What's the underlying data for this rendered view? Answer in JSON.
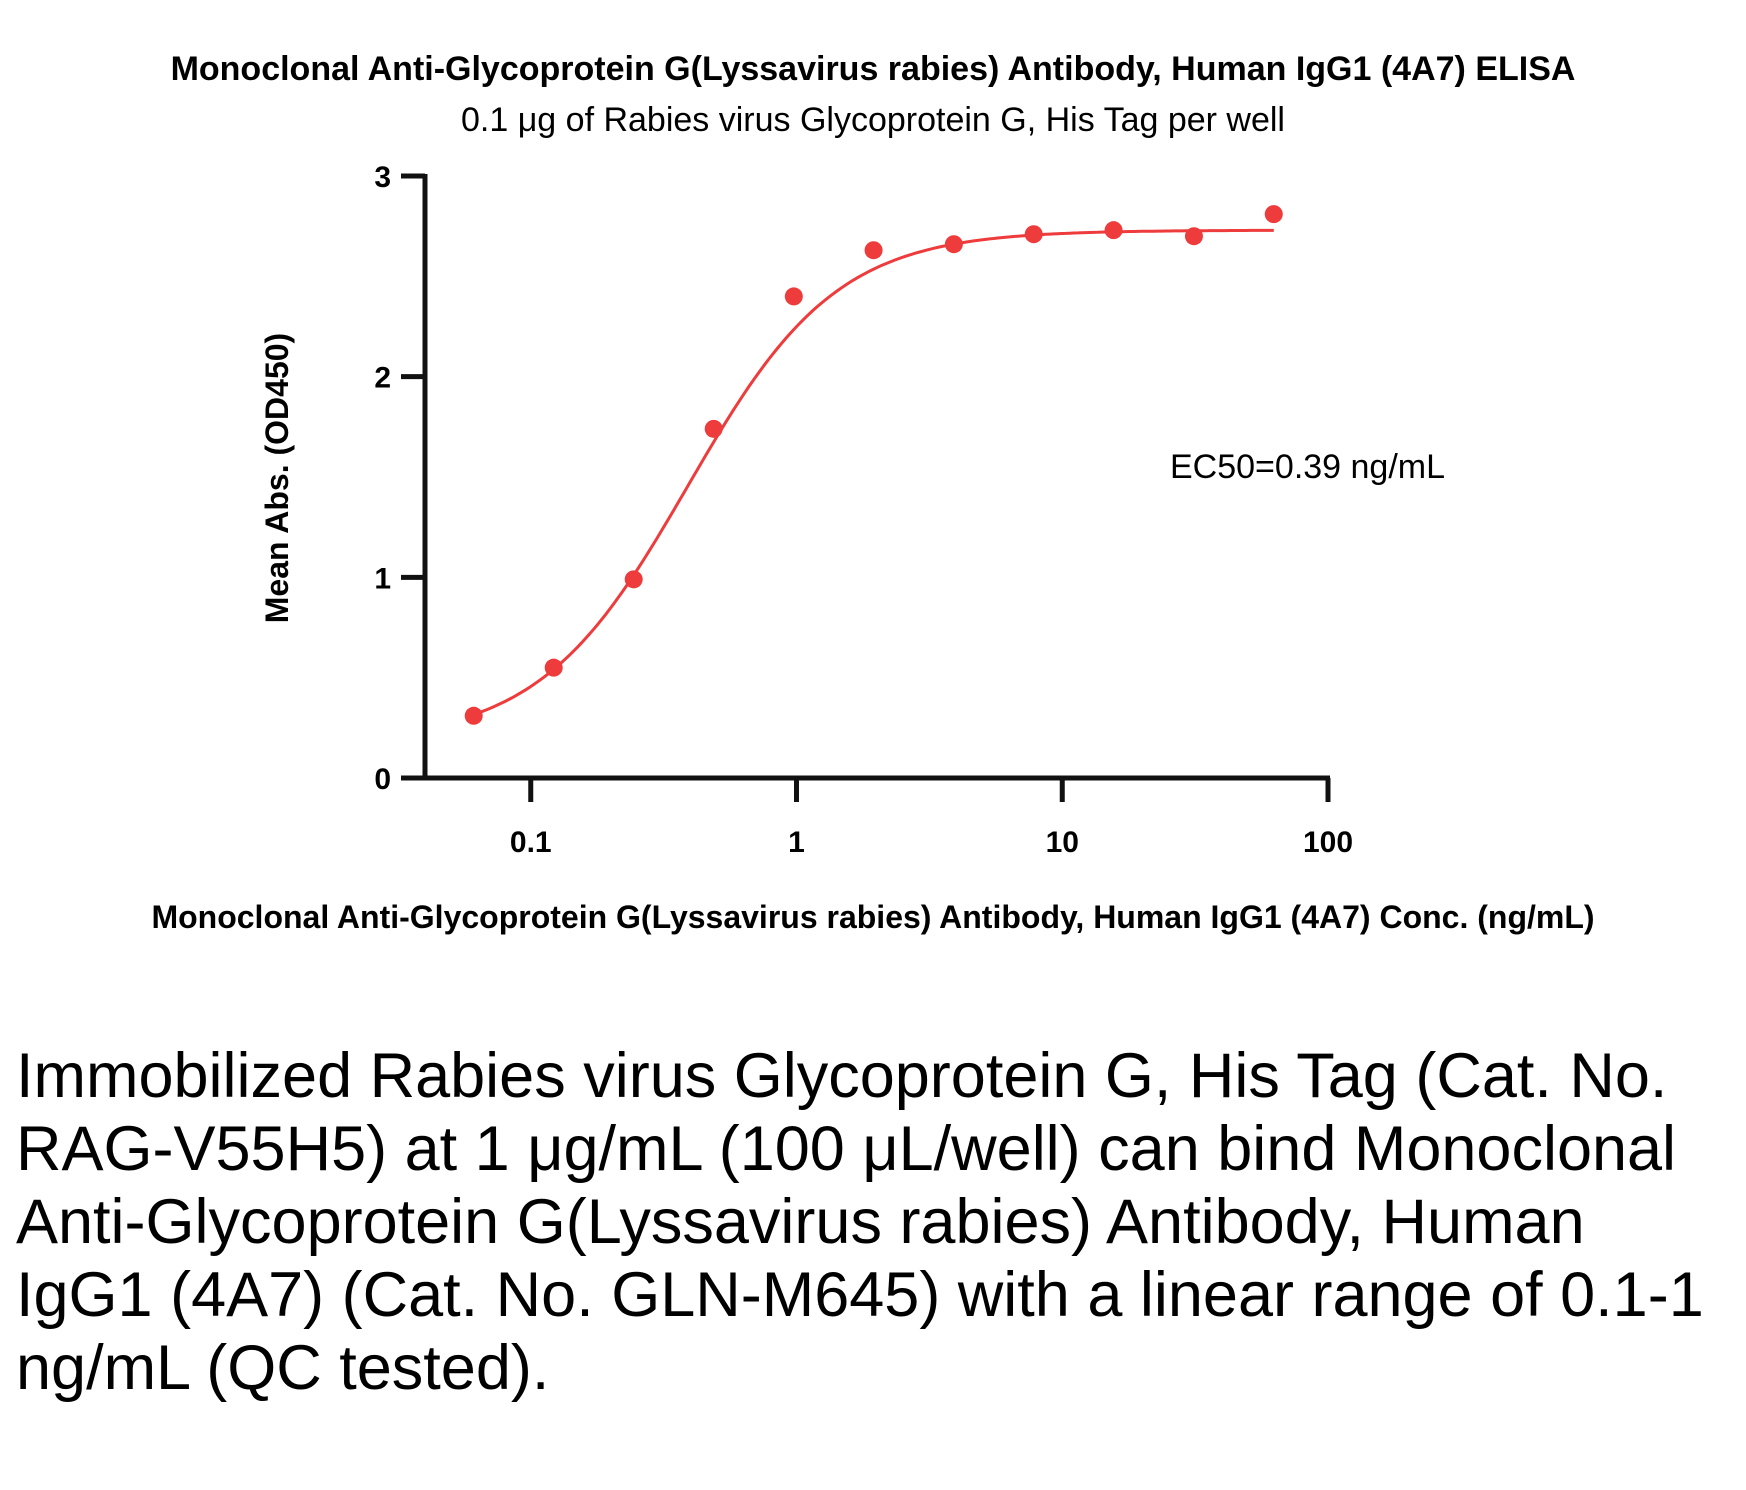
{
  "chart_data": {
    "type": "scatter",
    "title": "Monoclonal Anti-Glycoprotein G(Lyssavirus rabies) Antibody, Human IgG1 (4A7) ELISA",
    "subtitle": "0.1 μg of Rabies virus Glycoprotein G, His Tag per well",
    "xlabel": "Monoclonal Anti-Glycoprotein G(Lyssavirus rabies) Antibody, Human IgG1 (4A7) Conc. (ng/mL)",
    "ylabel": "Mean Abs. (OD450)",
    "x_scale": "log",
    "xlim": [
      0.04,
      100
    ],
    "ylim": [
      0,
      3
    ],
    "x_ticks": [
      0.1,
      1,
      10,
      100
    ],
    "x_tick_labels": [
      "0.1",
      "1",
      "10",
      "100"
    ],
    "y_ticks": [
      0,
      1,
      2,
      3
    ],
    "y_tick_labels": [
      "0",
      "1",
      "2",
      "3"
    ],
    "grid": false,
    "color": "#ee3b3b",
    "points": {
      "x": [
        0.061,
        0.122,
        0.244,
        0.488,
        0.977,
        1.95,
        3.91,
        7.81,
        15.6,
        31.3,
        62.5
      ],
      "y": [
        0.31,
        0.55,
        0.99,
        1.74,
        2.4,
        2.63,
        2.66,
        2.71,
        2.73,
        2.7,
        2.81
      ]
    },
    "curve": {
      "type": "4PL fit",
      "bottom": 0.18,
      "top": 2.73,
      "ec50": 0.39,
      "hill": 1.55
    },
    "annotation": "EC50=0.39 ng/mL"
  },
  "caption": "Immobilized Rabies virus Glycoprotein G, His Tag (Cat. No. RAG-V55H5) at 1 μg/mL (100 μL/well) can bind Monoclonal Anti-Glycoprotein G(Lyssavirus rabies) Antibody, Human IgG1 (4A7) (Cat. No. GLN-M645) with a linear range of 0.1-1 ng/mL (QC tested)."
}
